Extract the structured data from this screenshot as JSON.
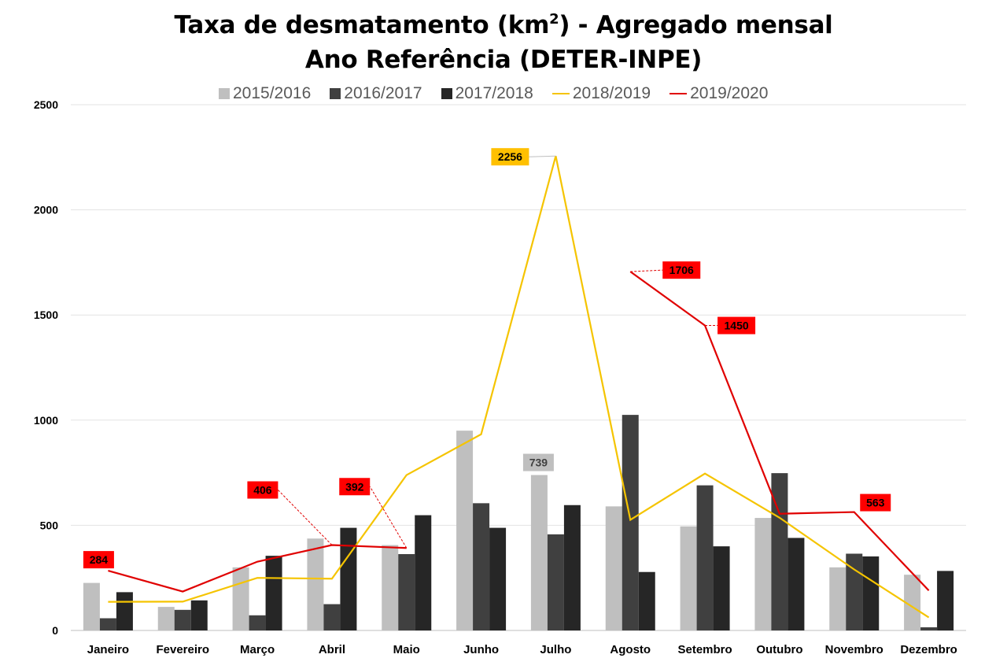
{
  "chart_data": {
    "type": "bar",
    "title_line1": "Taxa de desmatamento (km",
    "title_sup": "2",
    "title_line1_end": ") - Agregado mensal",
    "title_line2": "Ano Referência (DETER-INPE)",
    "categories": [
      "Janeiro",
      "Fevereiro",
      "Março",
      "Abril",
      "Maio",
      "Junho",
      "Julho",
      "Agosto",
      "Setembro",
      "Outubro",
      "Novembro",
      "Dezembro"
    ],
    "ylim": [
      0,
      2500
    ],
    "yticks": [
      "0",
      "500",
      "1000",
      "1500",
      "2000",
      "2500"
    ],
    "grid": true,
    "legend_position": "top",
    "series": [
      {
        "name": "2015/2016",
        "kind": "bar",
        "color": "#bfbfbf",
        "values": [
          226,
          112,
          300,
          437,
          406,
          950,
          739,
          590,
          495,
          535,
          300,
          265
        ]
      },
      {
        "name": "2016/2017",
        "kind": "bar",
        "color": "#404040",
        "values": [
          58,
          98,
          72,
          125,
          363,
          605,
          457,
          1025,
          690,
          748,
          365,
          15
        ]
      },
      {
        "name": "2017/2018",
        "kind": "bar",
        "color": "#262626",
        "values": [
          182,
          143,
          355,
          488,
          548,
          488,
          596,
          278,
          400,
          440,
          352,
          283
        ]
      },
      {
        "name": "2018/2019",
        "kind": "line",
        "color": "#f5c400",
        "values": [
          136,
          137,
          250,
          246,
          739,
          933,
          2256,
          526,
          746,
          536,
          290,
          62
        ]
      },
      {
        "name": "2019/2020",
        "kind": "line",
        "color": "#e00000",
        "values": [
          284,
          185,
          327,
          406,
          392,
          null,
          null,
          1706,
          1450,
          555,
          563,
          190
        ]
      }
    ],
    "data_labels": [
      {
        "series": "2019/2020",
        "category": "Janeiro",
        "text": "284",
        "bg": "#ff0000",
        "fg": "#000000"
      },
      {
        "series": "2019/2020",
        "category": "Abril",
        "text": "406",
        "bg": "#ff0000",
        "fg": "#000000"
      },
      {
        "series": "2019/2020",
        "category": "Maio",
        "text": "392",
        "bg": "#ff0000",
        "fg": "#000000"
      },
      {
        "series": "2019/2020",
        "category": "Agosto",
        "text": "1706",
        "bg": "#ff0000",
        "fg": "#000000"
      },
      {
        "series": "2019/2020",
        "category": "Setembro",
        "text": "1450",
        "bg": "#ff0000",
        "fg": "#000000"
      },
      {
        "series": "2019/2020",
        "category": "Novembro",
        "text": "563",
        "bg": "#ff0000",
        "fg": "#000000"
      },
      {
        "series": "2018/2019",
        "category": "Julho",
        "text": "2256",
        "bg": "#ffc000",
        "fg": "#000000"
      },
      {
        "series": "2015/2016",
        "category": "Julho",
        "text": "739",
        "bg": "#bfbfbf",
        "fg": "#404040"
      }
    ]
  }
}
